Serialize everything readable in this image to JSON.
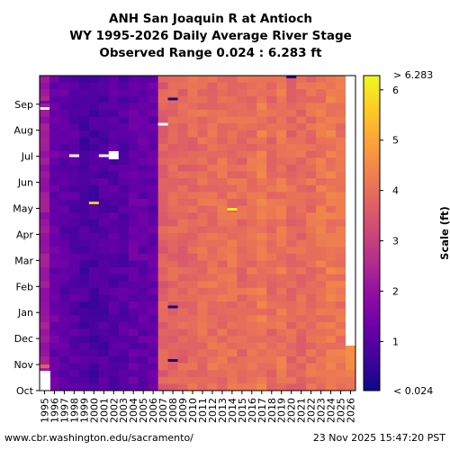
{
  "chart_data": {
    "type": "heatmap",
    "title": [
      "ANH San Joaquin R at Antioch",
      "WY 1995-2026 Daily Average River Stage",
      "Observed Range 0.024 : 6.283 ft"
    ],
    "x": [
      "1995",
      "1996",
      "1997",
      "1998",
      "1999",
      "2000",
      "2001",
      "2002",
      "2003",
      "2004",
      "2005",
      "2006",
      "2007",
      "2008",
      "2009",
      "2010",
      "2011",
      "2012",
      "2013",
      "2014",
      "2015",
      "2016",
      "2017",
      "2018",
      "2019",
      "2020",
      "2021",
      "2022",
      "2023",
      "2024",
      "2025",
      "2026"
    ],
    "y_months": [
      "Oct",
      "Nov",
      "Dec",
      "Jan",
      "Feb",
      "Mar",
      "Apr",
      "May",
      "Jun",
      "Jul",
      "Aug",
      "Sep"
    ],
    "colorbar": {
      "label": "Scale (ft)",
      "min": 0.024,
      "max": 6.283,
      "ticks": [
        1,
        2,
        3,
        4,
        5,
        6
      ],
      "over_label": "> 6.283",
      "under_label": "< 0.024",
      "colormap": "plasma"
    },
    "column_typical_values_ft": [
      2.1,
      1.3,
      1.1,
      1.0,
      0.8,
      0.8,
      0.9,
      1.0,
      1.0,
      1.2,
      1.2,
      1.2,
      3.7,
      3.8,
      3.8,
      3.9,
      4.0,
      4.0,
      4.0,
      4.0,
      3.9,
      4.0,
      4.2,
      3.9,
      4.1,
      3.9,
      3.9,
      4.0,
      4.1,
      4.2,
      4.1,
      4.4
    ],
    "grid": false
  },
  "footer": {
    "source": "www.cbr.washington.edu/sacramento/",
    "timestamp": "23 Nov 2025 15:47:20 PST"
  }
}
